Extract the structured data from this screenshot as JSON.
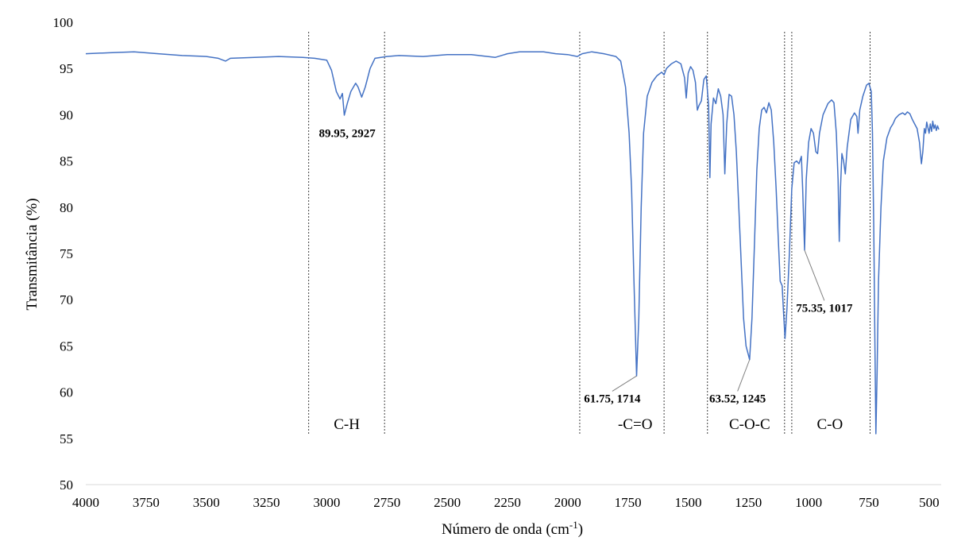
{
  "chart_data": {
    "type": "line",
    "xlabel": "Número de onda (cm",
    "xlabel_sup": "-1",
    "xlabel_tail": ")",
    "ylabel": "Transmitância (%)",
    "xlim": [
      4000,
      450
    ],
    "ylim": [
      50,
      100
    ],
    "x_reversed": true,
    "xticks": [
      4000,
      3750,
      3500,
      3250,
      3000,
      2750,
      2500,
      2250,
      2000,
      1750,
      1500,
      1250,
      1000,
      750,
      500
    ],
    "yticks": [
      50,
      55,
      60,
      65,
      70,
      75,
      80,
      85,
      90,
      95,
      100
    ],
    "grid": false,
    "line_color": "#4472c4",
    "series": [
      {
        "points": [
          [
            4000,
            96.6
          ],
          [
            3900,
            96.7
          ],
          [
            3800,
            96.8
          ],
          [
            3700,
            96.6
          ],
          [
            3600,
            96.4
          ],
          [
            3500,
            96.3
          ],
          [
            3450,
            96.1
          ],
          [
            3420,
            95.8
          ],
          [
            3400,
            96.1
          ],
          [
            3300,
            96.2
          ],
          [
            3200,
            96.3
          ],
          [
            3100,
            96.2
          ],
          [
            3050,
            96.1
          ],
          [
            3000,
            95.9
          ],
          [
            2980,
            94.8
          ],
          [
            2960,
            92.5
          ],
          [
            2945,
            91.7
          ],
          [
            2935,
            92.3
          ],
          [
            2927,
            89.95
          ],
          [
            2915,
            91.2
          ],
          [
            2900,
            92.5
          ],
          [
            2880,
            93.4
          ],
          [
            2870,
            93.0
          ],
          [
            2855,
            91.9
          ],
          [
            2840,
            93.0
          ],
          [
            2820,
            95.0
          ],
          [
            2800,
            96.1
          ],
          [
            2750,
            96.3
          ],
          [
            2700,
            96.4
          ],
          [
            2600,
            96.3
          ],
          [
            2500,
            96.5
          ],
          [
            2400,
            96.5
          ],
          [
            2300,
            96.2
          ],
          [
            2250,
            96.6
          ],
          [
            2200,
            96.8
          ],
          [
            2100,
            96.8
          ],
          [
            2050,
            96.6
          ],
          [
            2000,
            96.5
          ],
          [
            1960,
            96.3
          ],
          [
            1940,
            96.6
          ],
          [
            1900,
            96.8
          ],
          [
            1850,
            96.6
          ],
          [
            1800,
            96.3
          ],
          [
            1780,
            95.8
          ],
          [
            1760,
            93.0
          ],
          [
            1745,
            88.0
          ],
          [
            1735,
            82.0
          ],
          [
            1725,
            72.0
          ],
          [
            1714,
            61.75
          ],
          [
            1705,
            68.0
          ],
          [
            1695,
            80.0
          ],
          [
            1685,
            88.0
          ],
          [
            1670,
            92.0
          ],
          [
            1650,
            93.5
          ],
          [
            1630,
            94.2
          ],
          [
            1610,
            94.6
          ],
          [
            1600,
            94.3
          ],
          [
            1590,
            95.0
          ],
          [
            1570,
            95.5
          ],
          [
            1550,
            95.8
          ],
          [
            1530,
            95.5
          ],
          [
            1515,
            94.0
          ],
          [
            1508,
            91.8
          ],
          [
            1500,
            94.5
          ],
          [
            1490,
            95.2
          ],
          [
            1480,
            94.8
          ],
          [
            1470,
            93.5
          ],
          [
            1462,
            90.5
          ],
          [
            1455,
            91.0
          ],
          [
            1445,
            91.5
          ],
          [
            1435,
            93.8
          ],
          [
            1425,
            94.2
          ],
          [
            1415,
            91.0
          ],
          [
            1410,
            83.2
          ],
          [
            1405,
            89.0
          ],
          [
            1395,
            91.8
          ],
          [
            1385,
            91.2
          ],
          [
            1375,
            92.8
          ],
          [
            1365,
            92.0
          ],
          [
            1355,
            90.0
          ],
          [
            1348,
            83.6
          ],
          [
            1340,
            89.0
          ],
          [
            1330,
            92.2
          ],
          [
            1320,
            92.0
          ],
          [
            1310,
            90.0
          ],
          [
            1300,
            86.0
          ],
          [
            1290,
            80.0
          ],
          [
            1280,
            74.0
          ],
          [
            1270,
            68.0
          ],
          [
            1260,
            65.0
          ],
          [
            1245,
            63.52
          ],
          [
            1235,
            68.0
          ],
          [
            1225,
            76.0
          ],
          [
            1215,
            84.0
          ],
          [
            1205,
            88.5
          ],
          [
            1195,
            90.5
          ],
          [
            1185,
            90.8
          ],
          [
            1175,
            90.2
          ],
          [
            1165,
            91.3
          ],
          [
            1155,
            90.5
          ],
          [
            1145,
            87.0
          ],
          [
            1135,
            82.0
          ],
          [
            1125,
            76.0
          ],
          [
            1118,
            72.0
          ],
          [
            1110,
            71.5
          ],
          [
            1105,
            69.0
          ],
          [
            1098,
            65.8
          ],
          [
            1090,
            69.0
          ],
          [
            1080,
            75.0
          ],
          [
            1070,
            82.0
          ],
          [
            1060,
            84.8
          ],
          [
            1050,
            85.0
          ],
          [
            1040,
            84.7
          ],
          [
            1030,
            85.5
          ],
          [
            1025,
            82.0
          ],
          [
            1017,
            75.35
          ],
          [
            1010,
            83.0
          ],
          [
            1000,
            87.0
          ],
          [
            990,
            88.5
          ],
          [
            980,
            88.0
          ],
          [
            970,
            86.0
          ],
          [
            963,
            85.8
          ],
          [
            955,
            88.0
          ],
          [
            940,
            90.0
          ],
          [
            920,
            91.2
          ],
          [
            905,
            91.6
          ],
          [
            895,
            91.3
          ],
          [
            885,
            88.0
          ],
          [
            878,
            83.0
          ],
          [
            873,
            76.3
          ],
          [
            868,
            82.0
          ],
          [
            862,
            85.8
          ],
          [
            855,
            85.0
          ],
          [
            848,
            83.6
          ],
          [
            840,
            86.5
          ],
          [
            825,
            89.5
          ],
          [
            810,
            90.2
          ],
          [
            800,
            89.8
          ],
          [
            795,
            88.0
          ],
          [
            788,
            90.5
          ],
          [
            775,
            92.0
          ],
          [
            760,
            93.2
          ],
          [
            750,
            93.4
          ],
          [
            740,
            92.5
          ],
          [
            735,
            88.0
          ],
          [
            730,
            78.0
          ],
          [
            725,
            65.0
          ],
          [
            721,
            55.5
          ],
          [
            716,
            62.0
          ],
          [
            710,
            72.0
          ],
          [
            700,
            80.0
          ],
          [
            690,
            85.0
          ],
          [
            675,
            87.5
          ],
          [
            660,
            88.6
          ],
          [
            650,
            89.0
          ],
          [
            640,
            89.6
          ],
          [
            625,
            90.0
          ],
          [
            610,
            90.2
          ],
          [
            600,
            90.0
          ],
          [
            590,
            90.3
          ],
          [
            580,
            90.1
          ],
          [
            570,
            89.5
          ],
          [
            560,
            89.0
          ],
          [
            550,
            88.5
          ],
          [
            540,
            87.0
          ],
          [
            532,
            84.7
          ],
          [
            526,
            86.0
          ],
          [
            520,
            88.5
          ],
          [
            515,
            88.0
          ],
          [
            510,
            89.2
          ],
          [
            500,
            88.0
          ],
          [
            495,
            89.0
          ],
          [
            490,
            88.2
          ],
          [
            485,
            89.3
          ],
          [
            480,
            88.5
          ],
          [
            475,
            88.9
          ],
          [
            470,
            88.3
          ],
          [
            465,
            88.8
          ],
          [
            460,
            88.4
          ]
        ]
      }
    ],
    "region_lines": [
      3075,
      2760,
      1950,
      1600,
      1420,
      1100,
      1070,
      745
    ],
    "regions": [
      {
        "label": "C-H",
        "x": 2917
      },
      {
        "label": "-C=O",
        "x": 1720
      },
      {
        "label": "C-O-C",
        "x": 1245
      },
      {
        "label": "C-O",
        "x": 912
      }
    ],
    "annotations": [
      {
        "text": "89.95, 2927",
        "x": 2927,
        "y": 89.95,
        "lx": 2915,
        "ly": 87.6,
        "leader": false
      },
      {
        "text": "61.75, 1714",
        "x": 1714,
        "y": 61.75,
        "lx": 1815,
        "ly": 58.9,
        "leader": true
      },
      {
        "text": "63.52, 1245",
        "x": 1245,
        "y": 63.52,
        "lx": 1295,
        "ly": 58.9,
        "leader": true
      },
      {
        "text": "75.35, 1017",
        "x": 1017,
        "y": 75.35,
        "lx": 935,
        "ly": 68.7,
        "leader": true
      }
    ]
  }
}
